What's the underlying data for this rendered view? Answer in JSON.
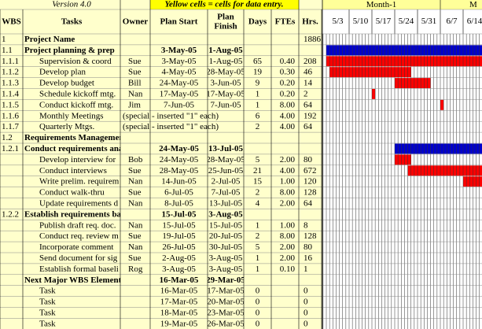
{
  "header": {
    "version": "Version 4.0",
    "note": "Yellow cells = cells for data entry.",
    "columns": [
      "WBS",
      "Tasks",
      "Owner",
      "Plan Start",
      "Plan Finish",
      "Days",
      "FTEs",
      "Hrs."
    ],
    "months": [
      "Month-1",
      "M"
    ],
    "weeks": [
      "5/3",
      "5/10",
      "5/17",
      "5/24",
      "5/31",
      "6/7",
      "6/14"
    ]
  },
  "colors": {
    "summary": "#0000cc",
    "task": "#ff0000"
  },
  "rows": [
    {
      "wbs": "1",
      "task": "Project Name",
      "hrs": "1886",
      "kind": "heading"
    },
    {
      "wbs": "1.1",
      "task": "Project planning & prep",
      "start": "3-May-05",
      "finish": "1-Aug-05",
      "kind": "summary"
    },
    {
      "wbs": "1.1.1",
      "task": "Supervision & coord",
      "owner": "Sue",
      "start": "3-May-05",
      "finish": "1-Aug-05",
      "days": "65",
      "ftes": "0.40",
      "hrs": "208"
    },
    {
      "wbs": "1.1.2",
      "task": "Develop plan",
      "owner": "Sue",
      "start": "4-May-05",
      "finish": "28-May-05",
      "days": "19",
      "ftes": "0.30",
      "hrs": "46"
    },
    {
      "wbs": "1.1.3",
      "task": "Develop budget",
      "owner": "Bill",
      "start": "24-May-05",
      "finish": "3-Jun-05",
      "days": "9",
      "ftes": "0.20",
      "hrs": "14"
    },
    {
      "wbs": "1.1.4",
      "task": "Schedule kickoff mtg.",
      "owner": "Nan",
      "start": "17-May-05",
      "finish": "17-May-05",
      "days": "1",
      "ftes": "0.20",
      "hrs": "2"
    },
    {
      "wbs": "1.1.5",
      "task": "Conduct kickoff mtg.",
      "owner": "Jim",
      "start": "7-Jun-05",
      "finish": "7-Jun-05",
      "days": "1",
      "ftes": "8.00",
      "hrs": "64"
    },
    {
      "wbs": "1.1.6",
      "task": "Monthly Meetings",
      "owner": "(special - inserted \"1\" each)",
      "days": "6",
      "ftes": "4.00",
      "hrs": "192"
    },
    {
      "wbs": "1.1.7",
      "task": "Quarterly Mtgs.",
      "owner": "(special - inserted \"1\" each)",
      "days": "2",
      "ftes": "4.00",
      "hrs": "64"
    },
    {
      "wbs": "1.2",
      "task": "Requirements Management",
      "kind": "heading"
    },
    {
      "wbs": "1.2.1",
      "task": "Conduct requirements analysi",
      "start": "24-May-05",
      "finish": "13-Jul-05",
      "kind": "summary"
    },
    {
      "task": "Develop interview for",
      "owner": "Bob",
      "start": "24-May-05",
      "finish": "28-May-05",
      "days": "5",
      "ftes": "2.00",
      "hrs": "80"
    },
    {
      "task": "Conduct interviews",
      "owner": "Sue",
      "start": "28-May-05",
      "finish": "25-Jun-05",
      "days": "21",
      "ftes": "4.00",
      "hrs": "672"
    },
    {
      "task": "Write prelim. requirem",
      "owner": "Nan",
      "start": "14-Jun-05",
      "finish": "2-Jul-05",
      "days": "15",
      "ftes": "1.00",
      "hrs": "120"
    },
    {
      "task": "Conduct walk-thru",
      "owner": "Sue",
      "start": "6-Jul-05",
      "finish": "7-Jul-05",
      "days": "2",
      "ftes": "8.00",
      "hrs": "128"
    },
    {
      "task": "Update requirements d",
      "owner": "Nan",
      "start": "8-Jul-05",
      "finish": "13-Jul-05",
      "days": "4",
      "ftes": "2.00",
      "hrs": "64"
    },
    {
      "wbs": "1.2.2",
      "task": "Establish requirements baselin",
      "start": "15-Jul-05",
      "finish": "3-Aug-05",
      "kind": "summary"
    },
    {
      "task": "Publish draft req. doc.",
      "owner": "Nan",
      "start": "15-Jul-05",
      "finish": "15-Jul-05",
      "days": "1",
      "ftes": "1.00",
      "hrs": "8"
    },
    {
      "task": "Conduct req. review m",
      "owner": "Sue",
      "start": "19-Jul-05",
      "finish": "20-Jul-05",
      "days": "2",
      "ftes": "8.00",
      "hrs": "128"
    },
    {
      "task": "Incorporate comment",
      "owner": "Nan",
      "start": "26-Jul-05",
      "finish": "30-Jul-05",
      "days": "5",
      "ftes": "2.00",
      "hrs": "80"
    },
    {
      "task": "Send document for sig",
      "owner": "Sue",
      "start": "2-Aug-05",
      "finish": "3-Aug-05",
      "days": "1",
      "ftes": "2.00",
      "hrs": "16"
    },
    {
      "task": "Establish formal baseli",
      "owner": "Rog",
      "start": "3-Aug-05",
      "finish": "3-Aug-05",
      "days": "1",
      "ftes": "0.10",
      "hrs": "1"
    },
    {
      "task": "Next Major WBS Element",
      "start": "16-Mar-05",
      "finish": "29-Mar-05",
      "kind": "summary"
    },
    {
      "task": "Task",
      "start": "16-Mar-05",
      "finish": "17-Mar-05",
      "days": "0",
      "hrs": "0"
    },
    {
      "task": "Task",
      "start": "17-Mar-05",
      "finish": "20-Mar-05",
      "days": "0",
      "hrs": "0"
    },
    {
      "task": "Task",
      "start": "18-Mar-05",
      "finish": "23-Mar-05",
      "days": "0",
      "hrs": "0"
    },
    {
      "task": "Task",
      "start": "19-Mar-05",
      "finish": "26-Mar-05",
      "days": "0",
      "hrs": "0"
    }
  ]
}
